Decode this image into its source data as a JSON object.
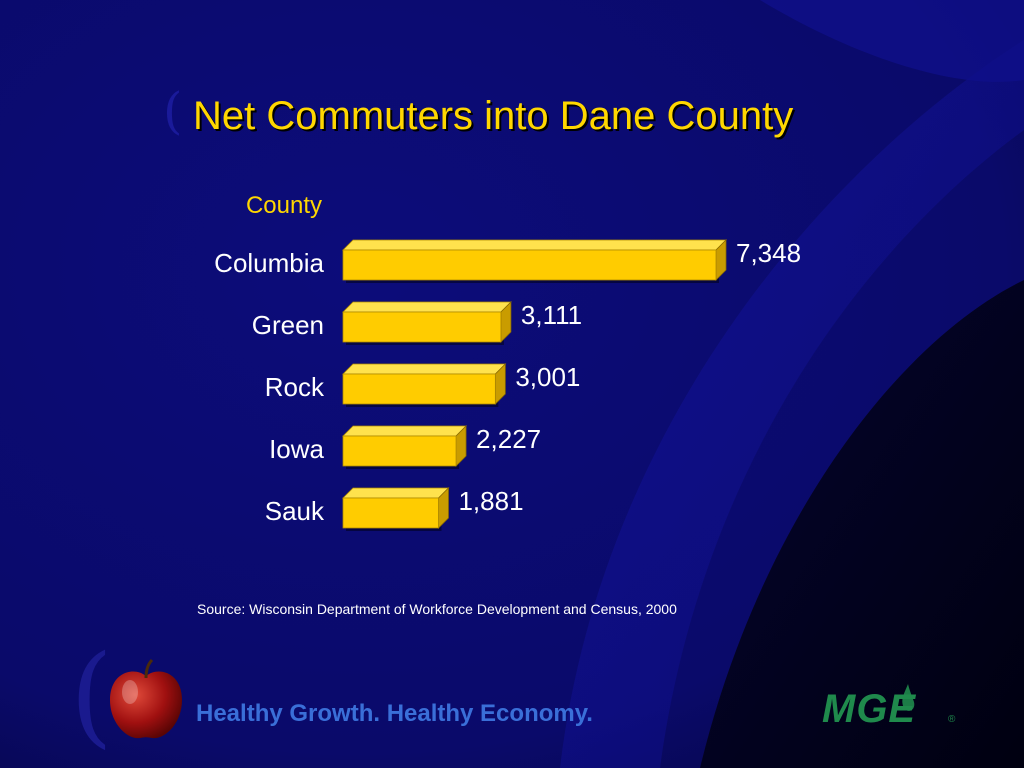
{
  "slide": {
    "title": "Net Commuters into Dane County",
    "source": "Source: Wisconsin Department of Workforce Development and Census, 2000",
    "tagline": "Healthy Growth. Healthy Economy.",
    "logo_text": "MGE",
    "apple_icon": "apple-icon",
    "colors": {
      "background": "#0a0a6e",
      "bar": "#ffcc00",
      "title": "#ffd700",
      "tagline": "#3a6fd8",
      "logo": "#1f8a4c"
    }
  },
  "chart_data": {
    "type": "bar",
    "orientation": "horizontal",
    "title": "Net Commuters into Dane County",
    "category_axis_label": "County",
    "categories": [
      "Columbia",
      "Green",
      "Rock",
      "Iowa",
      "Sauk"
    ],
    "values": [
      7348,
      3111,
      3001,
      2227,
      1881
    ],
    "value_labels": [
      "7,348",
      "3,111",
      "3,001",
      "2,227",
      "1,881"
    ],
    "xlim": [
      0,
      7348
    ],
    "grid": false,
    "legend": "none"
  }
}
